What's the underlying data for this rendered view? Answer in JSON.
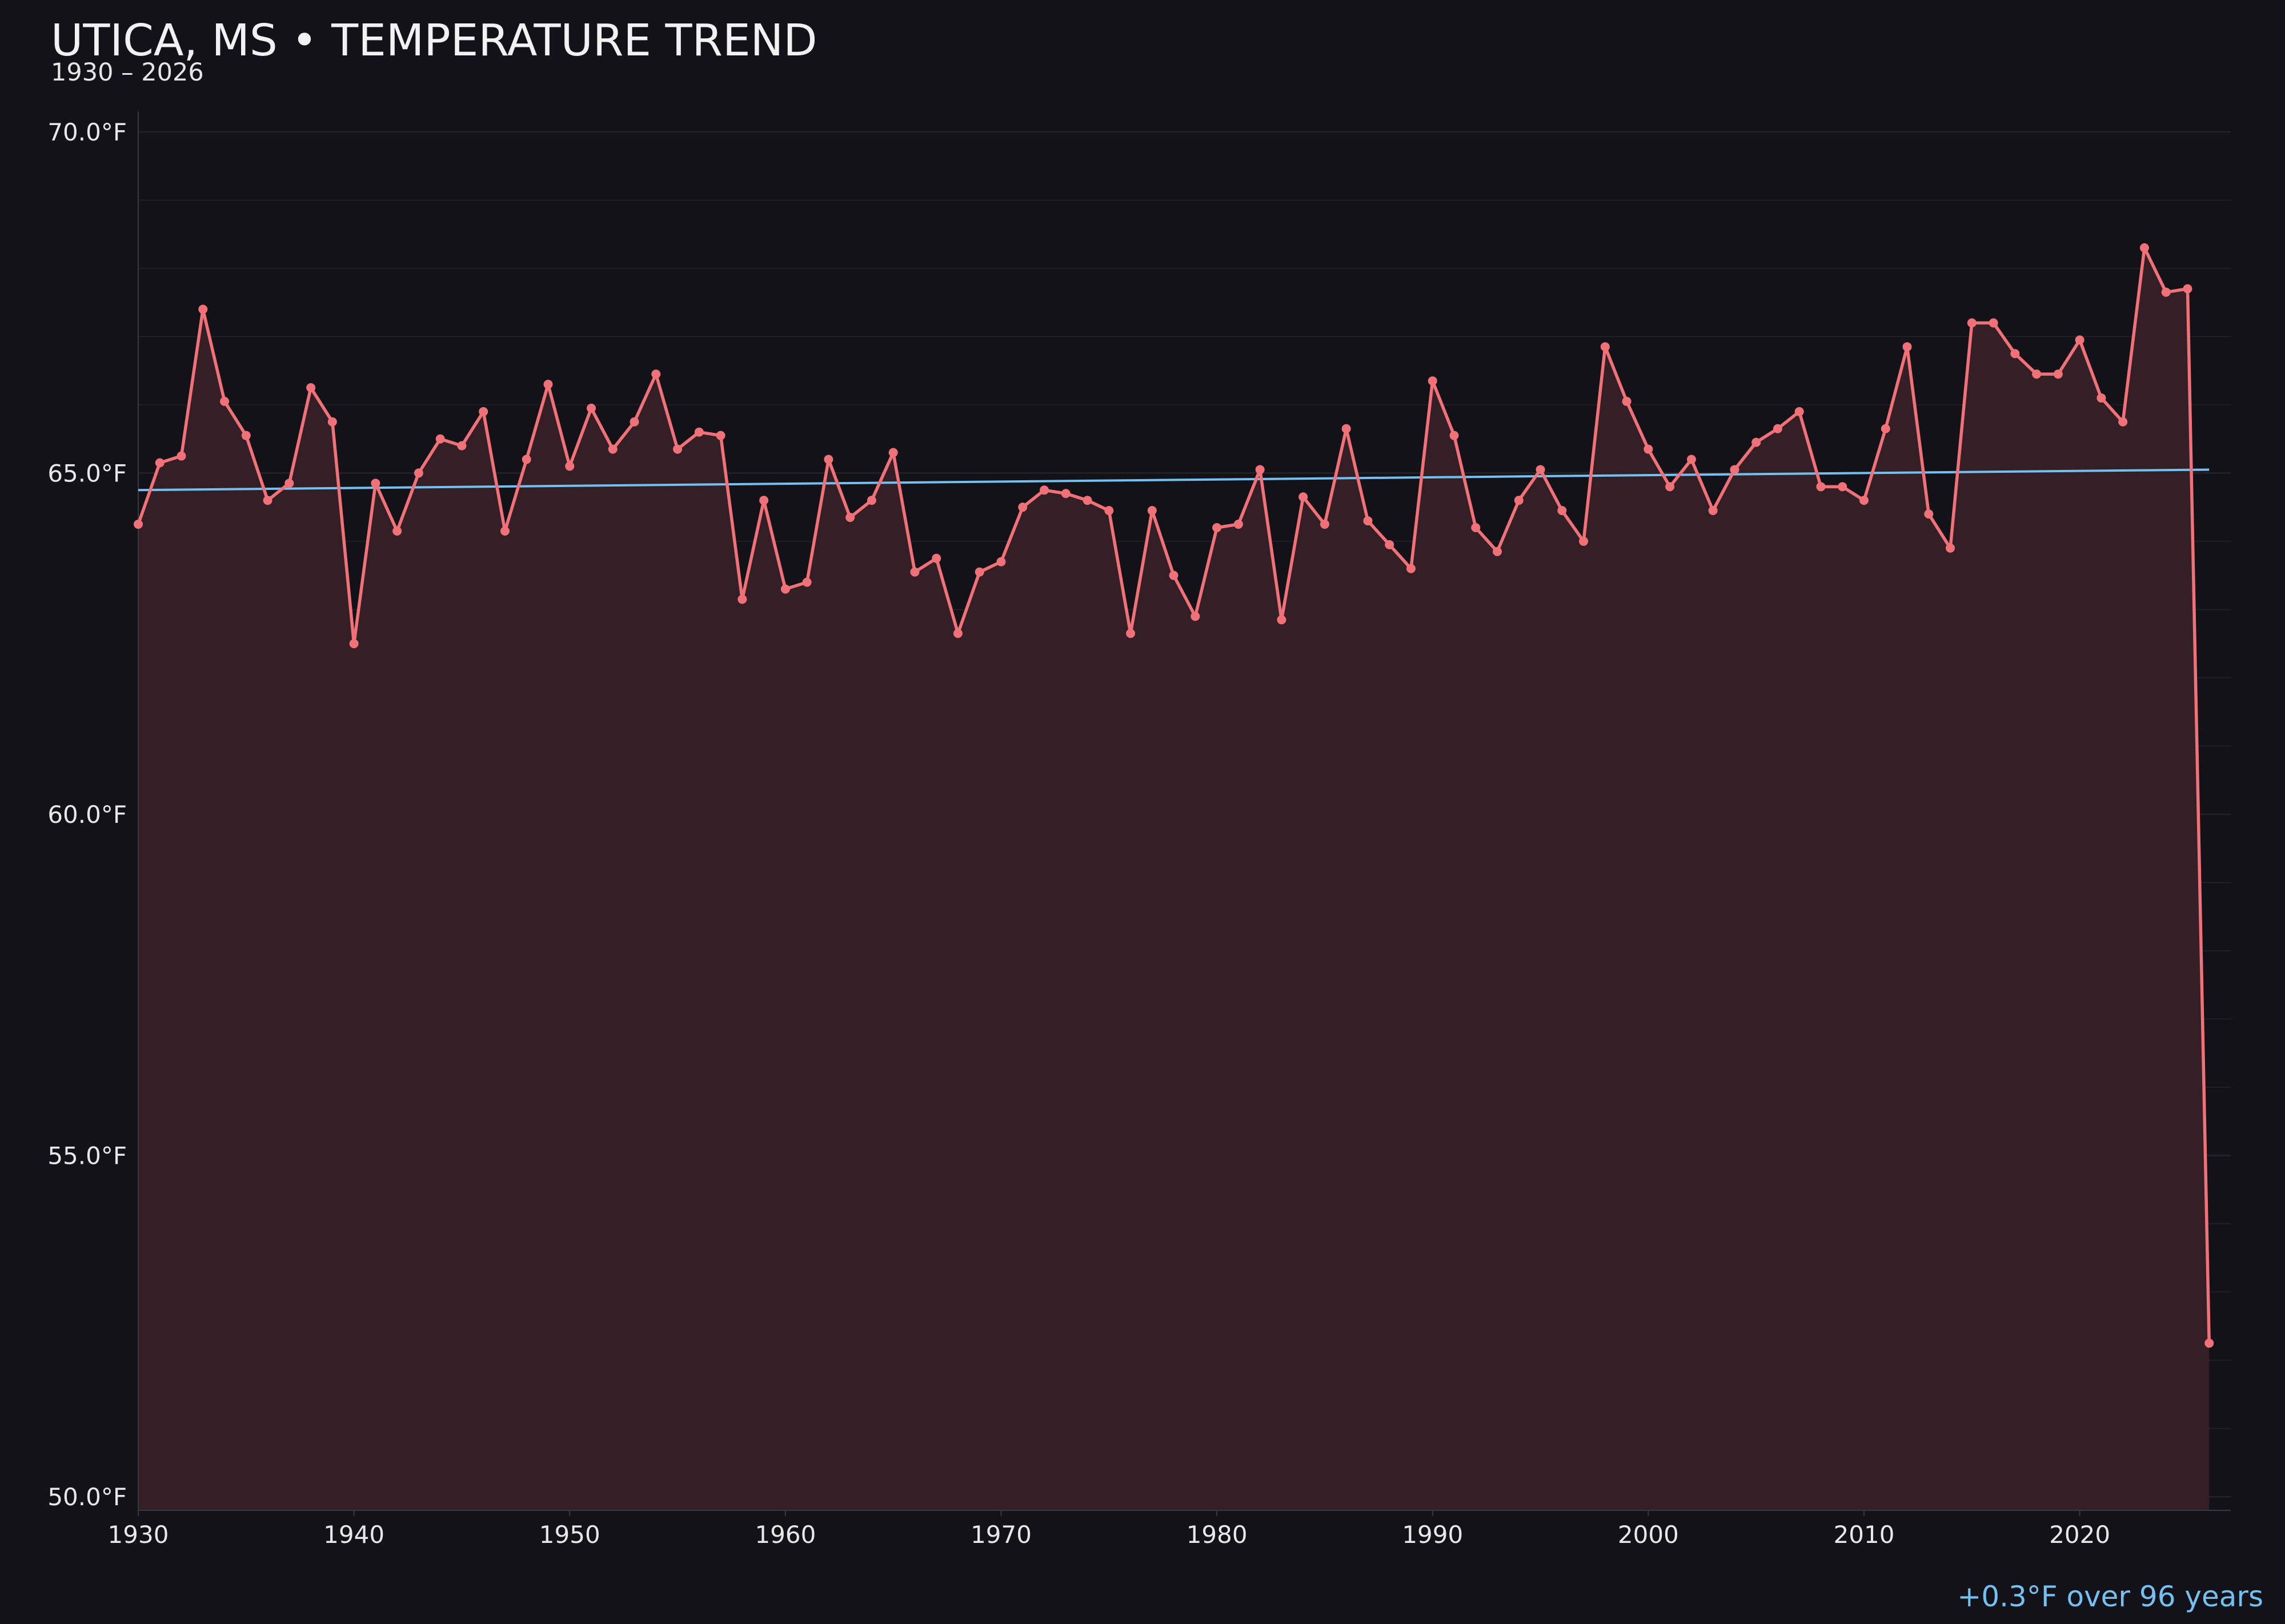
{
  "chart_data": {
    "type": "line",
    "title": "UTICA, MS • TEMPERATURE TREND",
    "subtitle": "1930 – 2026",
    "xlabel": "",
    "ylabel": "",
    "xlim": [
      1930,
      2027
    ],
    "ylim": [
      49.8,
      70.3
    ],
    "x_ticks": [
      1930,
      1940,
      1950,
      1960,
      1970,
      1980,
      1990,
      2000,
      2010,
      2020
    ],
    "y_ticks": [
      {
        "value": 50,
        "label": "50.0°F"
      },
      {
        "value": 55,
        "label": "55.0°F"
      },
      {
        "value": 60,
        "label": "60.0°F"
      },
      {
        "value": 65,
        "label": "65.0°F"
      },
      {
        "value": 70,
        "label": "70.0°F"
      }
    ],
    "grid": true,
    "colors": {
      "background": "#131218",
      "line": "#f07178",
      "fill": "#351f26",
      "trend": "#74c0f0",
      "grid": "#24222a",
      "axis": "#3a3840",
      "text": "#e8e8e8"
    },
    "x": [
      1930,
      1931,
      1932,
      1933,
      1934,
      1935,
      1936,
      1937,
      1938,
      1939,
      1940,
      1941,
      1942,
      1943,
      1944,
      1945,
      1946,
      1947,
      1948,
      1949,
      1950,
      1951,
      1952,
      1953,
      1954,
      1955,
      1956,
      1957,
      1958,
      1959,
      1960,
      1961,
      1962,
      1963,
      1964,
      1965,
      1966,
      1967,
      1968,
      1969,
      1970,
      1971,
      1972,
      1973,
      1974,
      1975,
      1976,
      1977,
      1978,
      1979,
      1980,
      1981,
      1982,
      1983,
      1984,
      1985,
      1986,
      1987,
      1988,
      1989,
      1990,
      1991,
      1992,
      1993,
      1994,
      1995,
      1996,
      1997,
      1998,
      1999,
      2000,
      2001,
      2002,
      2003,
      2004,
      2005,
      2006,
      2007,
      2008,
      2009,
      2010,
      2011,
      2012,
      2013,
      2014,
      2015,
      2016,
      2017,
      2018,
      2019,
      2020,
      2021,
      2022,
      2023,
      2024,
      2025,
      2026
    ],
    "series": [
      {
        "values": [
          64.25,
          65.15,
          65.25,
          67.4,
          66.05,
          65.55,
          64.6,
          64.85,
          66.25,
          65.75,
          62.5,
          64.85,
          64.15,
          65.0,
          65.5,
          65.4,
          65.9,
          64.15,
          65.2,
          66.3,
          65.1,
          65.95,
          65.35,
          65.75,
          66.45,
          65.35,
          65.6,
          65.55,
          63.15,
          64.6,
          63.3,
          63.4,
          65.2,
          64.35,
          64.6,
          65.3,
          63.55,
          63.75,
          62.65,
          63.55,
          63.7,
          64.5,
          64.75,
          64.7,
          64.6,
          64.45,
          62.65,
          64.45,
          63.5,
          62.9,
          64.2,
          64.25,
          65.05,
          62.85,
          64.65,
          64.25,
          65.65,
          64.3,
          63.95,
          63.6,
          66.35,
          65.55,
          64.2,
          63.85,
          64.6,
          65.05,
          64.45,
          64.0,
          66.85,
          66.05,
          65.35,
          64.8,
          65.2,
          64.45,
          65.05,
          65.45,
          65.65,
          65.9,
          64.8,
          64.8,
          64.6,
          65.65,
          66.85,
          64.4,
          63.9,
          67.2,
          67.2,
          66.75,
          66.45,
          66.45,
          66.95,
          66.1,
          65.75,
          68.3,
          67.65,
          67.7,
          52.25
        ]
      }
    ],
    "trend": {
      "start": [
        1930,
        64.75
      ],
      "end": [
        2026,
        65.05
      ]
    },
    "annotation": "+0.3°F over 96 years"
  }
}
